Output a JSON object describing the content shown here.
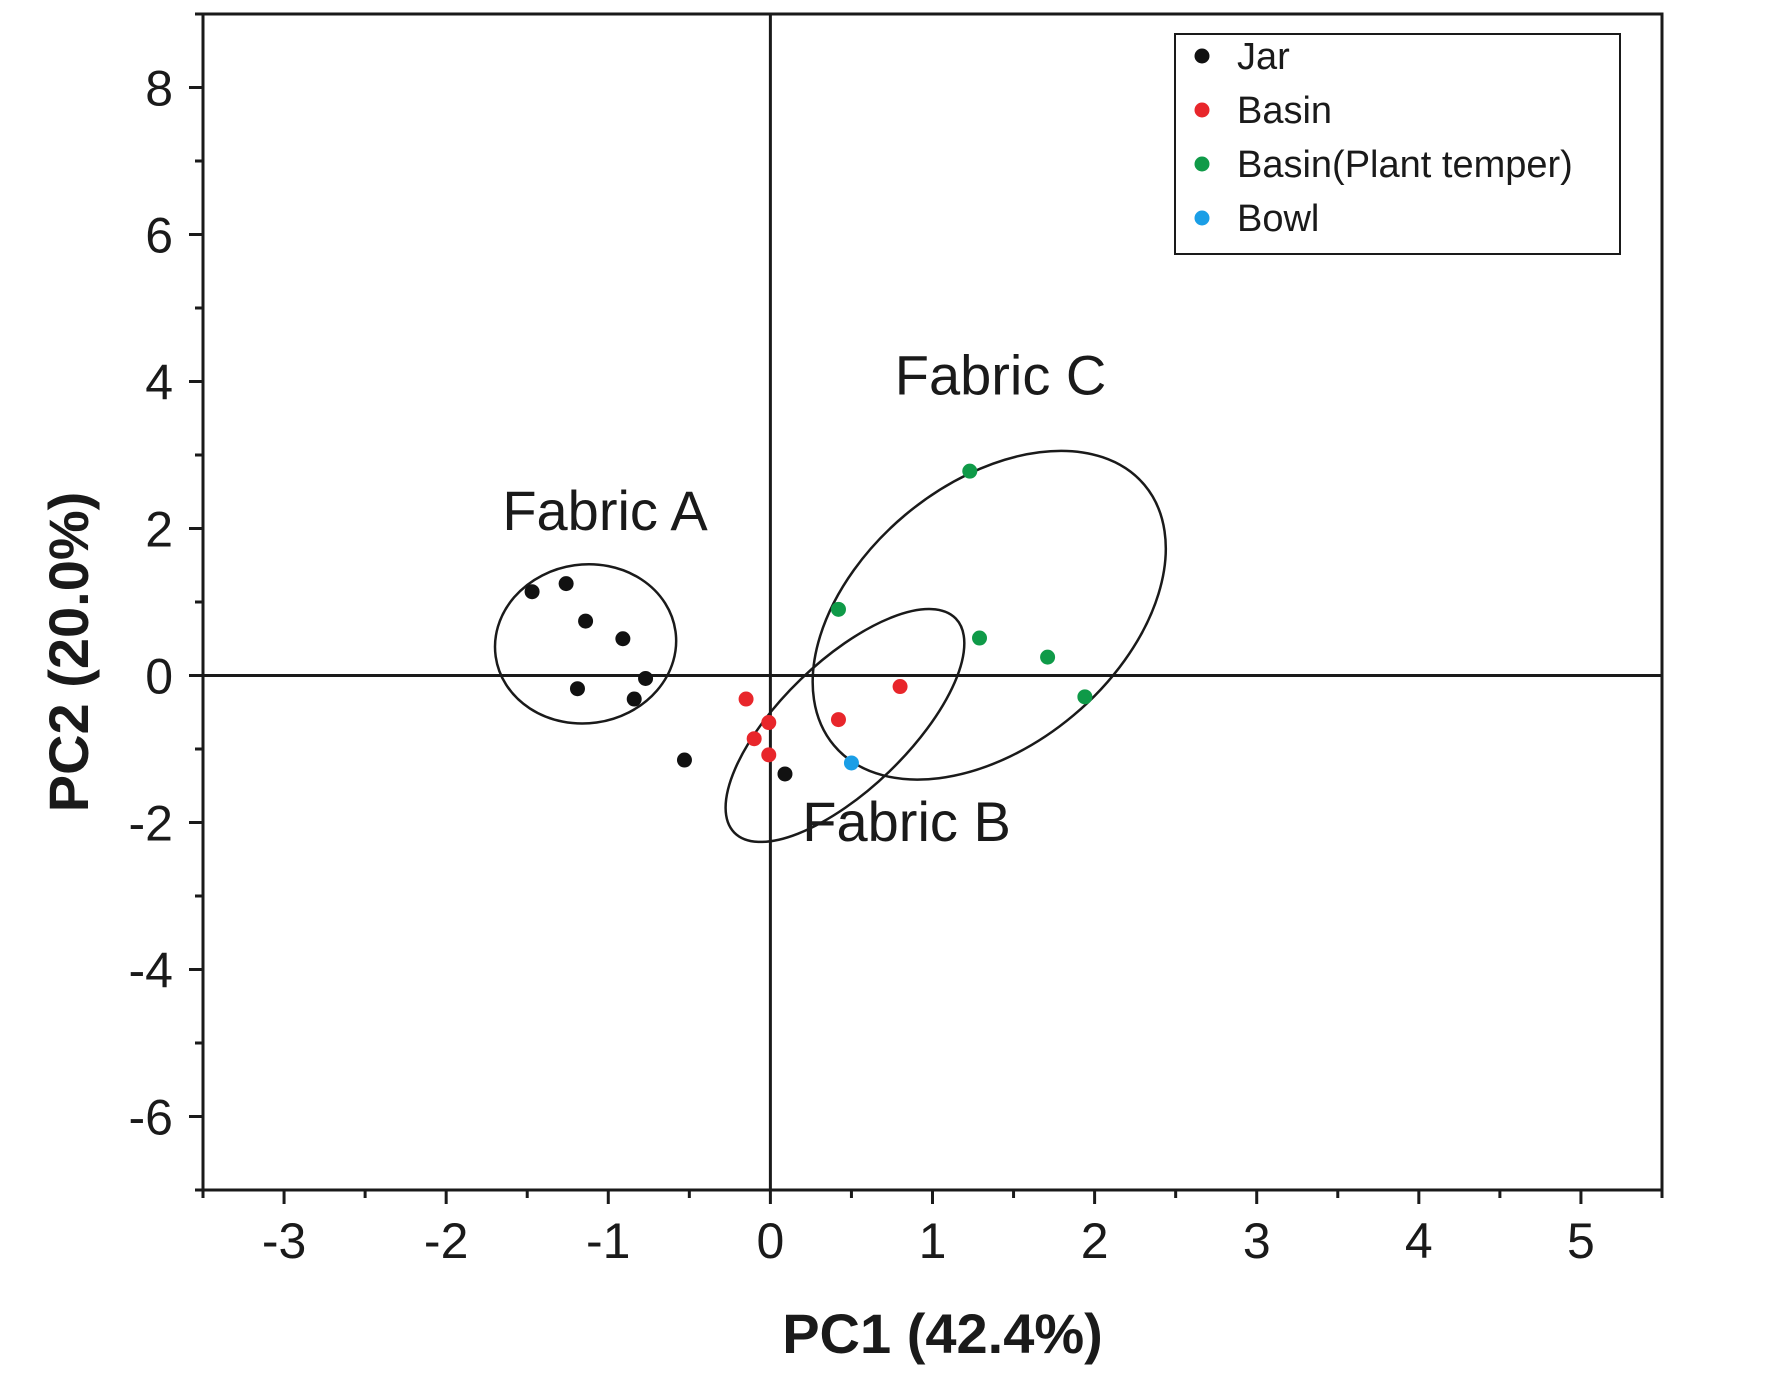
{
  "chart_data": {
    "type": "scatter",
    "xlabel": "PC1 (42.4%)",
    "ylabel": "PC2 (20.0%)",
    "xlim": [
      -3.5,
      5.5
    ],
    "ylim": [
      -7,
      9
    ],
    "xticks": [
      -3,
      -2,
      -1,
      0,
      1,
      2,
      3,
      4,
      5
    ],
    "yticks": [
      -6,
      -4,
      -2,
      0,
      2,
      4,
      6,
      8
    ],
    "grid": false,
    "legend_position": "top-right",
    "series": [
      {
        "name": "Jar",
        "color": "#111111",
        "points": [
          {
            "x": -1.47,
            "y": 1.14
          },
          {
            "x": -1.26,
            "y": 1.25
          },
          {
            "x": -1.14,
            "y": 0.74
          },
          {
            "x": -0.91,
            "y": 0.5
          },
          {
            "x": -0.77,
            "y": -0.04
          },
          {
            "x": -1.19,
            "y": -0.18
          },
          {
            "x": -0.84,
            "y": -0.32
          },
          {
            "x": -0.53,
            "y": -1.15
          },
          {
            "x": 0.09,
            "y": -1.34
          }
        ]
      },
      {
        "name": "Basin",
        "color": "#e8262b",
        "points": [
          {
            "x": -0.15,
            "y": -0.32
          },
          {
            "x": -0.01,
            "y": -0.64
          },
          {
            "x": -0.1,
            "y": -0.86
          },
          {
            "x": -0.01,
            "y": -1.08
          },
          {
            "x": 0.42,
            "y": -0.6
          },
          {
            "x": 0.8,
            "y": -0.15
          }
        ]
      },
      {
        "name": "Basin(Plant temper)",
        "color": "#0f9a48",
        "points": [
          {
            "x": 1.23,
            "y": 2.78
          },
          {
            "x": 0.42,
            "y": 0.9
          },
          {
            "x": 1.29,
            "y": 0.51
          },
          {
            "x": 1.71,
            "y": 0.25
          },
          {
            "x": 1.94,
            "y": -0.29
          }
        ]
      },
      {
        "name": "Bowl",
        "color": "#1a9ee6",
        "points": [
          {
            "x": 0.5,
            "y": -1.19
          }
        ]
      }
    ],
    "annotations": [
      {
        "text": "Fabric A",
        "x": -1.02,
        "y": 1.98
      },
      {
        "text": "Fabric B",
        "x": 0.84,
        "y": -2.25
      },
      {
        "text": "Fabric C",
        "x": 1.42,
        "y": 3.82
      }
    ],
    "ellipses": [
      {
        "cx": -1.14,
        "cy": 0.43,
        "rx": 0.56,
        "ry": 1.08,
        "angle": -8
      },
      {
        "cx": 0.46,
        "cy": -0.68,
        "rx": 0.95,
        "ry": 0.87,
        "angle": -44
      },
      {
        "cx": 1.35,
        "cy": 0.82,
        "rx": 1.25,
        "ry": 1.78,
        "angle": -40
      }
    ]
  }
}
